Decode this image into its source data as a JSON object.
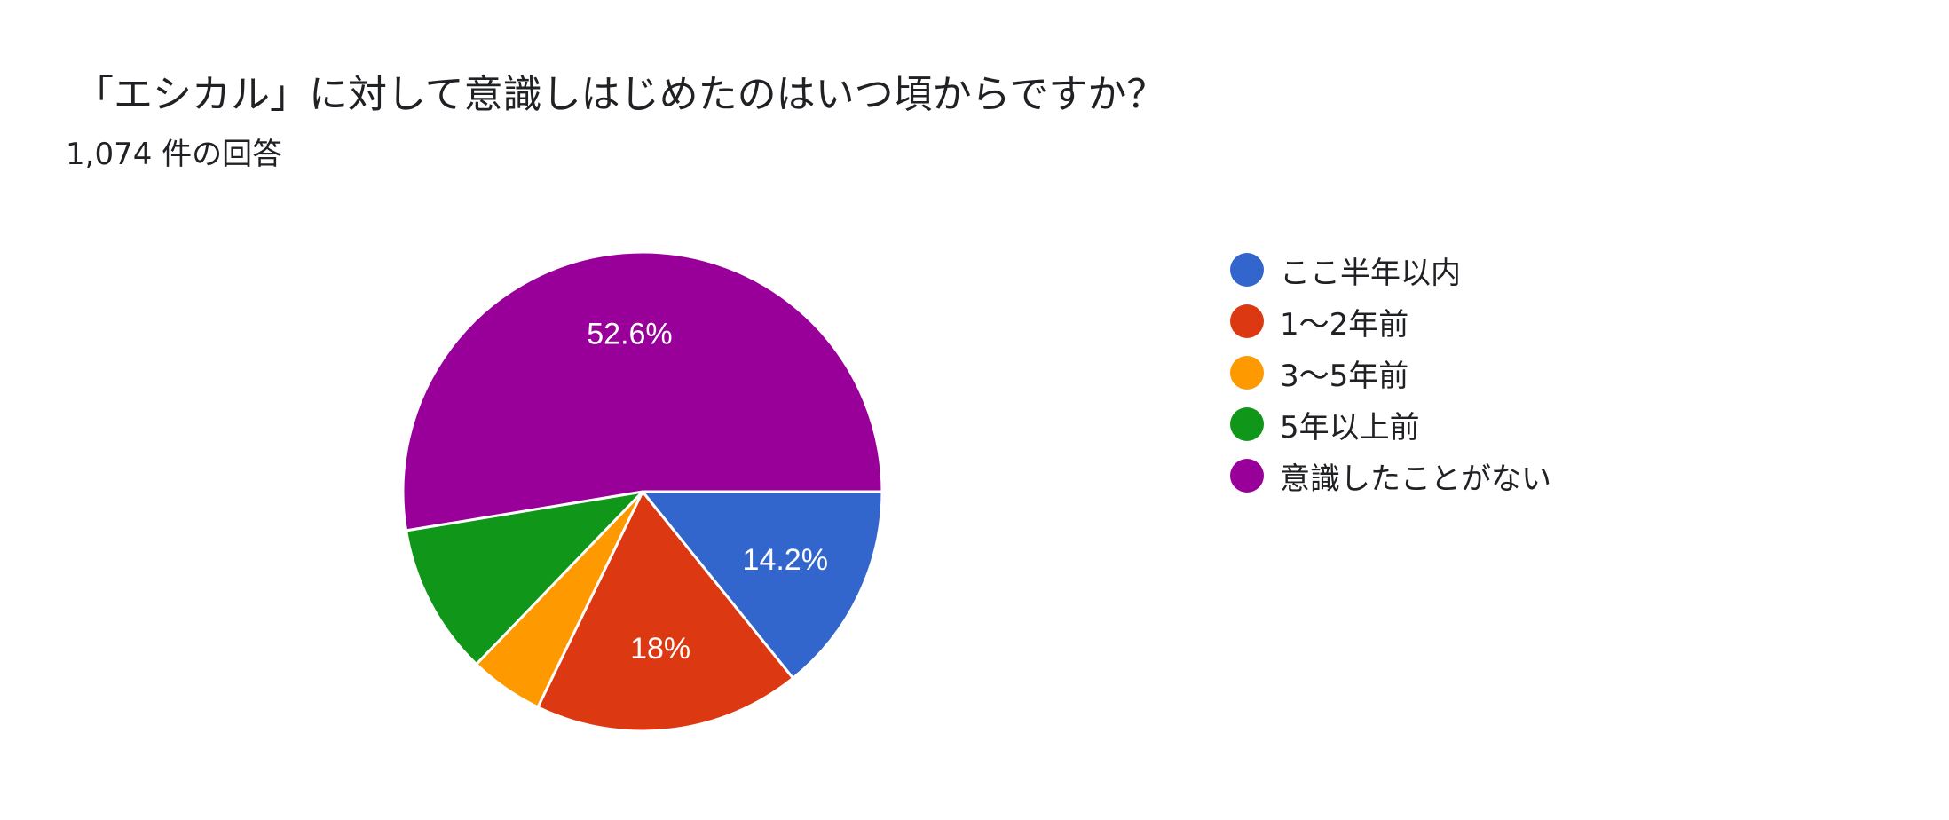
{
  "chart_data": {
    "type": "pie",
    "title": "「エシカル」に対して意識しはじめたのはいつ頃からですか？",
    "subtitle": "1,074 件の回答",
    "legend_position": "right",
    "slices": [
      {
        "label": "ここ半年以内",
        "value": 14.2,
        "color": "#3366cc",
        "display": "14.2%"
      },
      {
        "label": "1〜2年前",
        "value": 18.0,
        "color": "#dc3912",
        "display": "18%"
      },
      {
        "label": "3〜5年前",
        "value": 5.0,
        "color": "#ff9900",
        "display": ""
      },
      {
        "label": "5年以上前",
        "value": 10.2,
        "color": "#109618",
        "display": ""
      },
      {
        "label": "意識したことがない",
        "value": 52.6,
        "color": "#990099",
        "display": "52.6%"
      }
    ]
  }
}
